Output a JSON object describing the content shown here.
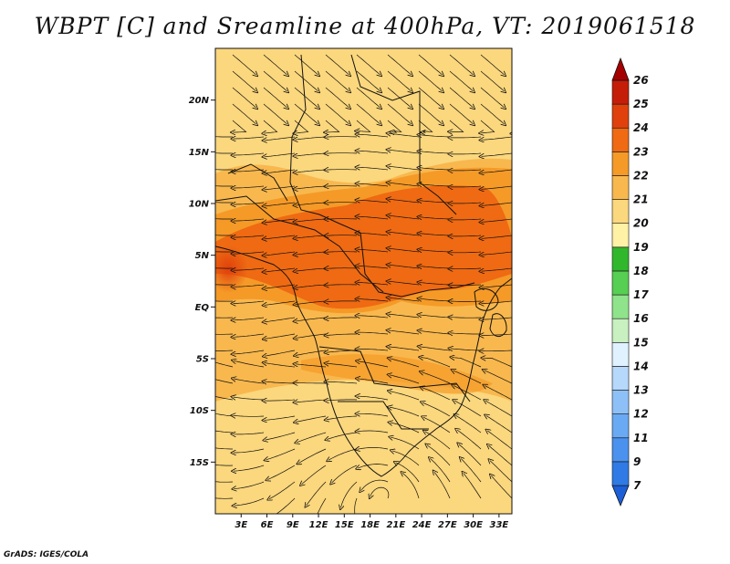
{
  "title": "WBPT [C] and Sreamline at 400hPa, VT: 2019061518",
  "footer": "GrADS: IGES/COLA",
  "axes": {
    "lat_labels": [
      "20N",
      "15N",
      "10N",
      "5N",
      "EQ",
      "5S",
      "10S",
      "15S"
    ],
    "lat_values": [
      20,
      15,
      10,
      5,
      0,
      -5,
      -10,
      -15
    ],
    "lon_labels": [
      "3E",
      "6E",
      "9E",
      "12E",
      "15E",
      "18E",
      "21E",
      "24E",
      "27E",
      "30E",
      "33E"
    ],
    "lon_values": [
      3,
      6,
      9,
      12,
      15,
      18,
      21,
      24,
      27,
      30,
      33
    ],
    "lat_range": [
      -20,
      25
    ],
    "lon_range": [
      0,
      34.5
    ]
  },
  "colorbar": {
    "labels": [
      "7",
      "9",
      "11",
      "12",
      "13",
      "14",
      "15",
      "16",
      "17",
      "18",
      "19",
      "20",
      "21",
      "22",
      "23",
      "24",
      "25",
      "26"
    ],
    "colors": [
      "#1c5fd6",
      "#2f7ae5",
      "#4a92ee",
      "#6aa9f4",
      "#8ec0f8",
      "#b6d8fb",
      "#e0f2ff",
      "#c8f0c0",
      "#8fe38a",
      "#57cf52",
      "#31b72c",
      "#fff2a6",
      "#fbd77d",
      "#f8b84e",
      "#f59a27",
      "#ef6a12",
      "#e0410c",
      "#c51e08",
      "#a50000"
    ]
  }
}
